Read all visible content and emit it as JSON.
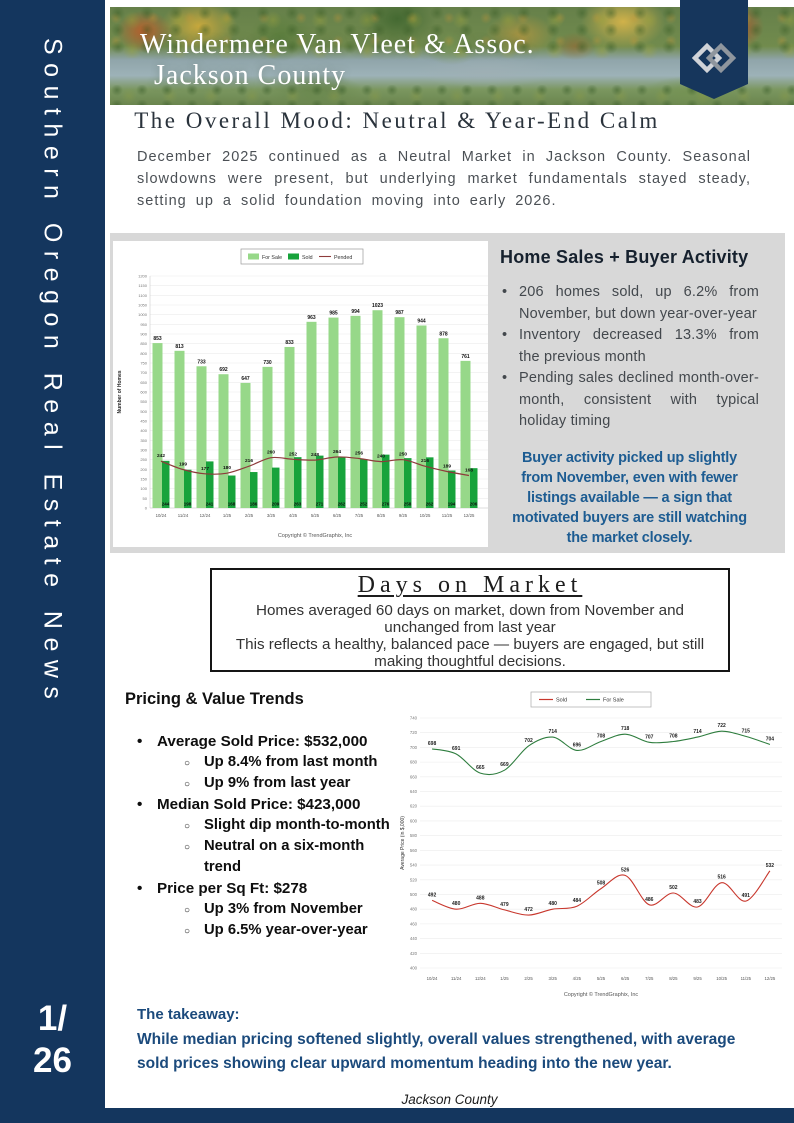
{
  "colors": {
    "navy": "#14365E",
    "callout_blue": "#1d5c92",
    "takeaway_blue": "#1b4a7c",
    "panel_gray": "#d8d8d8"
  },
  "sidebar": {
    "vertical_text": "Southern Oregon Real Estate News",
    "page_number_top": "1/",
    "page_number_bottom": "26"
  },
  "header": {
    "brand_line1": "Windermere Van Vleet & Assoc.",
    "brand_line2": "Jackson County",
    "logo": "windermere-w-icon"
  },
  "intro": {
    "title": "The Overall Mood: Neutral & Year-End Calm",
    "body": "December 2025 continued as a Neutral Market in Jackson County. Seasonal slowdowns were present, but underlying market fundamentals stayed steady, setting up a solid foundation moving into early 2026."
  },
  "home_sales": {
    "heading": "Home Sales + Buyer Activity",
    "bullets": [
      "206 homes sold, up 6.2% from November, but down year-over-year",
      "Inventory decreased 13.3% from the previous month",
      "Pending sales declined month-over-month, consistent with typical holiday timing"
    ],
    "callout": "Buyer activity picked up slightly from November, even with fewer listings available — a sign that motivated buyers are still watching the market closely."
  },
  "days_on_market": {
    "title": "Days on Market",
    "line1": "Homes averaged 60 days on market, down from November and unchanged from last year",
    "line2": "This reflects a healthy, balanced pace — buyers are engaged, but still making thoughtful decisions."
  },
  "pricing": {
    "heading": "Pricing & Value Trends",
    "items": [
      {
        "label": "Average Sold Price: $532,000",
        "subs": [
          "Up 8.4% from last month",
          "Up 9% from last year"
        ]
      },
      {
        "label": "Median Sold Price: $423,000",
        "subs": [
          "Slight dip month-to-month",
          "Neutral on a six-month trend"
        ]
      },
      {
        "label": "Price per Sq Ft: $278",
        "subs": [
          "Up 3% from November",
          "Up 6.5% year-over-year"
        ]
      }
    ]
  },
  "takeaway": {
    "label": "The takeaway:",
    "body": "While median pricing softened slightly, overall values strengthened, with average sold prices showing clear upward momentum heading into the new year."
  },
  "footer": {
    "text": "Jackson County"
  },
  "chart_data": [
    {
      "type": "bar",
      "categories": [
        "10/24",
        "11/24",
        "12/24",
        "1/25",
        "2/25",
        "3/25",
        "4/25",
        "5/25",
        "6/25",
        "7/25",
        "8/25",
        "9/25",
        "10/25",
        "11/25",
        "12/25"
      ],
      "series": [
        {
          "name": "For Sale",
          "kind": "bar",
          "color": "#97D889",
          "values": [
            853,
            813,
            733,
            692,
            647,
            730,
            833,
            963,
            985,
            994,
            1023,
            987,
            944,
            878,
            761
          ]
        },
        {
          "name": "Sold",
          "kind": "bar",
          "color": "#17A33B",
          "values": [
            244,
            198,
            241,
            168,
            186,
            209,
            263,
            271,
            262,
            252,
            276,
            258,
            262,
            194,
            206
          ]
        },
        {
          "name": "Pended",
          "kind": "line",
          "color": "#8E3B3B",
          "values": [
            242,
            199,
            177,
            180,
            216,
            260,
            252,
            248,
            264,
            256,
            240,
            250,
            216,
            189,
            168
          ]
        }
      ],
      "ylabel": "Number of Homes",
      "ylim": [
        0,
        1200
      ],
      "ytick": 50,
      "copyright": "Copyright © TrendGraphix, Inc"
    },
    {
      "type": "line",
      "categories": [
        "10/24",
        "11/24",
        "12/24",
        "1/25",
        "2/25",
        "3/25",
        "4/25",
        "5/25",
        "6/25",
        "7/25",
        "8/25",
        "9/25",
        "10/25",
        "11/25",
        "12/25"
      ],
      "series": [
        {
          "name": "Sold",
          "kind": "line",
          "color": "#C8372D",
          "values": [
            492,
            480,
            488,
            479,
            472,
            480,
            484,
            508,
            526,
            486,
            502,
            483,
            516,
            491,
            532
          ]
        },
        {
          "name": "For Sale",
          "kind": "line",
          "color": "#2E7D3E",
          "values": [
            698,
            691,
            665,
            669,
            702,
            714,
            696,
            708,
            718,
            707,
            708,
            714,
            722,
            715,
            704
          ]
        }
      ],
      "ylabel": "Average Price (in $,000)",
      "ylim": [
        400,
        740
      ],
      "ytick": 20,
      "copyright": "Copyright © TrendGraphix, Inc"
    }
  ]
}
